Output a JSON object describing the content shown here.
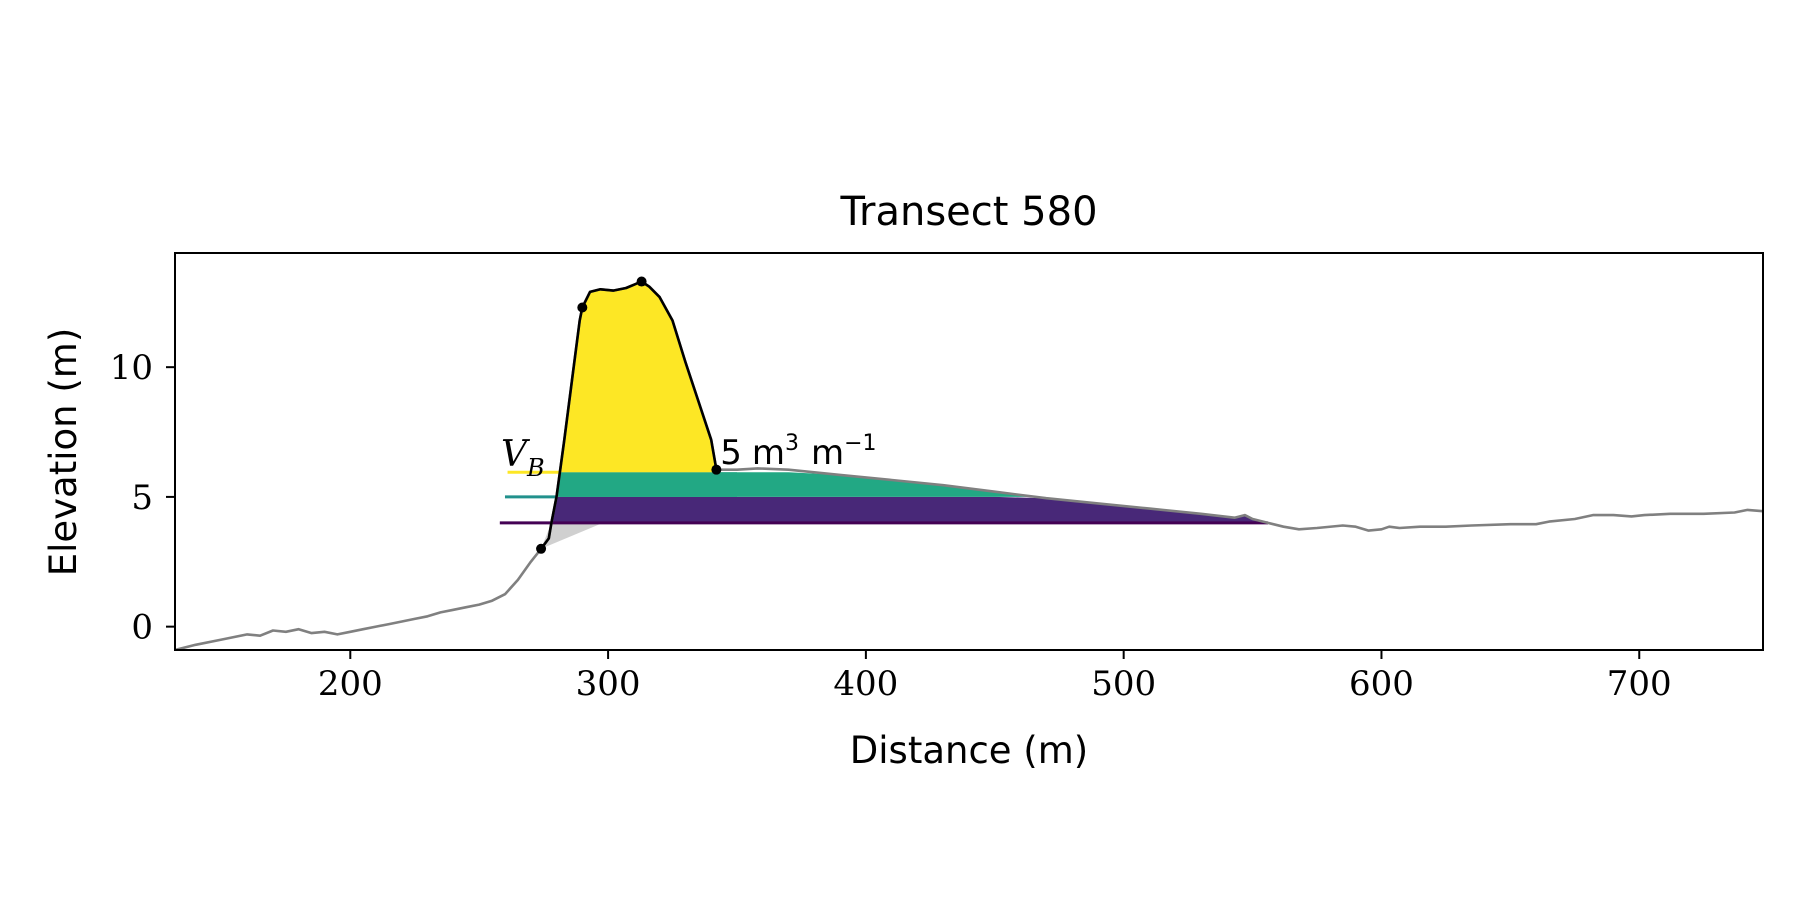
{
  "chart_data": {
    "type": "area",
    "title": "Transect 580",
    "xlabel": "Distance (m)",
    "ylabel": "Elevation (m)",
    "xlim": [
      132,
      748
    ],
    "ylim": [
      -0.9,
      14.4
    ],
    "xticks": [
      200,
      300,
      400,
      500,
      600,
      700
    ],
    "yticks": [
      0,
      5,
      10
    ],
    "grid": false,
    "legend": "none",
    "annotation": {
      "text_prefix": "V",
      "text_subscript": "B",
      "text_value_fragment": "5",
      "text_units": "m",
      "text_sup_1": "3",
      "text_units_2": "m",
      "text_sup_2": "−1",
      "x": 260,
      "y": 6.2
    },
    "reference_levels": [
      {
        "level": 5.95,
        "x_start": 261,
        "color": "#fde725"
      },
      {
        "level": 5.0,
        "x_start": 260,
        "color": "#21918c"
      },
      {
        "level": 4.0,
        "x_start": 258,
        "color": "#440154"
      }
    ],
    "fill_bands": [
      {
        "from": 4.0,
        "to": 5.0,
        "color": "#482878",
        "x_end": 556
      },
      {
        "from": 5.0,
        "to": 5.95,
        "color": "#22a884",
        "x_end": 468
      }
    ],
    "dune_color": "#fde725",
    "toe_shade_color": "#d0d0d0",
    "profile_color": "#808080",
    "dune_outline_color": "#000000",
    "profile": [
      [
        132,
        -0.9
      ],
      [
        140,
        -0.7
      ],
      [
        150,
        -0.5
      ],
      [
        160,
        -0.3
      ],
      [
        165,
        -0.35
      ],
      [
        170,
        -0.15
      ],
      [
        175,
        -0.2
      ],
      [
        180,
        -0.1
      ],
      [
        185,
        -0.25
      ],
      [
        190,
        -0.2
      ],
      [
        195,
        -0.3
      ],
      [
        200,
        -0.2
      ],
      [
        205,
        -0.1
      ],
      [
        210,
        0.0
      ],
      [
        215,
        0.1
      ],
      [
        220,
        0.2
      ],
      [
        225,
        0.3
      ],
      [
        230,
        0.4
      ],
      [
        235,
        0.55
      ],
      [
        240,
        0.65
      ],
      [
        245,
        0.75
      ],
      [
        250,
        0.85
      ],
      [
        255,
        1.0
      ],
      [
        260,
        1.25
      ],
      [
        265,
        1.8
      ],
      [
        270,
        2.5
      ],
      [
        274,
        3.0
      ],
      [
        277,
        3.4
      ],
      [
        278,
        4.0
      ],
      [
        280,
        5.0
      ],
      [
        283,
        7.2
      ],
      [
        286,
        9.5
      ],
      [
        289,
        11.8
      ],
      [
        290,
        12.3
      ],
      [
        293,
        12.9
      ],
      [
        297,
        13.0
      ],
      [
        302,
        12.95
      ],
      [
        307,
        13.05
      ],
      [
        313,
        13.3
      ],
      [
        316,
        13.1
      ],
      [
        320,
        12.7
      ],
      [
        325,
        11.8
      ],
      [
        330,
        10.2
      ],
      [
        335,
        8.7
      ],
      [
        340,
        7.2
      ],
      [
        342,
        6.05
      ],
      [
        350,
        6.05
      ],
      [
        358,
        6.1
      ],
      [
        370,
        6.05
      ],
      [
        390,
        5.85
      ],
      [
        410,
        5.65
      ],
      [
        430,
        5.45
      ],
      [
        450,
        5.2
      ],
      [
        470,
        4.95
      ],
      [
        490,
        4.75
      ],
      [
        510,
        4.55
      ],
      [
        530,
        4.35
      ],
      [
        543,
        4.2
      ],
      [
        547,
        4.3
      ],
      [
        550,
        4.15
      ],
      [
        556,
        4.0
      ],
      [
        562,
        3.85
      ],
      [
        568,
        3.75
      ],
      [
        575,
        3.8
      ],
      [
        585,
        3.9
      ],
      [
        590,
        3.85
      ],
      [
        595,
        3.7
      ],
      [
        600,
        3.75
      ],
      [
        603,
        3.85
      ],
      [
        607,
        3.8
      ],
      [
        615,
        3.85
      ],
      [
        625,
        3.85
      ],
      [
        635,
        3.9
      ],
      [
        650,
        3.95
      ],
      [
        660,
        3.95
      ],
      [
        665,
        4.05
      ],
      [
        675,
        4.15
      ],
      [
        682,
        4.3
      ],
      [
        690,
        4.3
      ],
      [
        697,
        4.25
      ],
      [
        702,
        4.3
      ],
      [
        712,
        4.35
      ],
      [
        725,
        4.35
      ],
      [
        737,
        4.4
      ],
      [
        742,
        4.5
      ],
      [
        748,
        4.45
      ]
    ],
    "dune_outline": [
      [
        274,
        3.0
      ],
      [
        277,
        3.4
      ],
      [
        278,
        4.0
      ],
      [
        280,
        5.0
      ],
      [
        283,
        7.2
      ],
      [
        286,
        9.5
      ],
      [
        289,
        11.8
      ],
      [
        290,
        12.3
      ],
      [
        293,
        12.9
      ],
      [
        297,
        13.0
      ],
      [
        302,
        12.95
      ],
      [
        307,
        13.05
      ],
      [
        313,
        13.3
      ],
      [
        316,
        13.1
      ],
      [
        320,
        12.7
      ],
      [
        325,
        11.8
      ],
      [
        330,
        10.2
      ],
      [
        335,
        8.7
      ],
      [
        340,
        7.2
      ],
      [
        342,
        6.05
      ]
    ],
    "dune_fill": [
      [
        281,
        5.95
      ],
      [
        283,
        7.2
      ],
      [
        286,
        9.5
      ],
      [
        289,
        11.8
      ],
      [
        290,
        12.3
      ],
      [
        293,
        12.9
      ],
      [
        297,
        13.0
      ],
      [
        302,
        12.95
      ],
      [
        307,
        13.05
      ],
      [
        313,
        13.3
      ],
      [
        316,
        13.1
      ],
      [
        320,
        12.7
      ],
      [
        325,
        11.8
      ],
      [
        330,
        10.2
      ],
      [
        335,
        8.7
      ],
      [
        340,
        7.2
      ],
      [
        342.4,
        5.95
      ]
    ],
    "toe_shade": [
      [
        274,
        3.0
      ],
      [
        278,
        4.0
      ],
      [
        298,
        4.0
      ]
    ],
    "markers": [
      [
        274,
        3.0
      ],
      [
        290,
        12.3
      ],
      [
        313,
        13.3
      ],
      [
        342,
        6.05
      ]
    ]
  }
}
